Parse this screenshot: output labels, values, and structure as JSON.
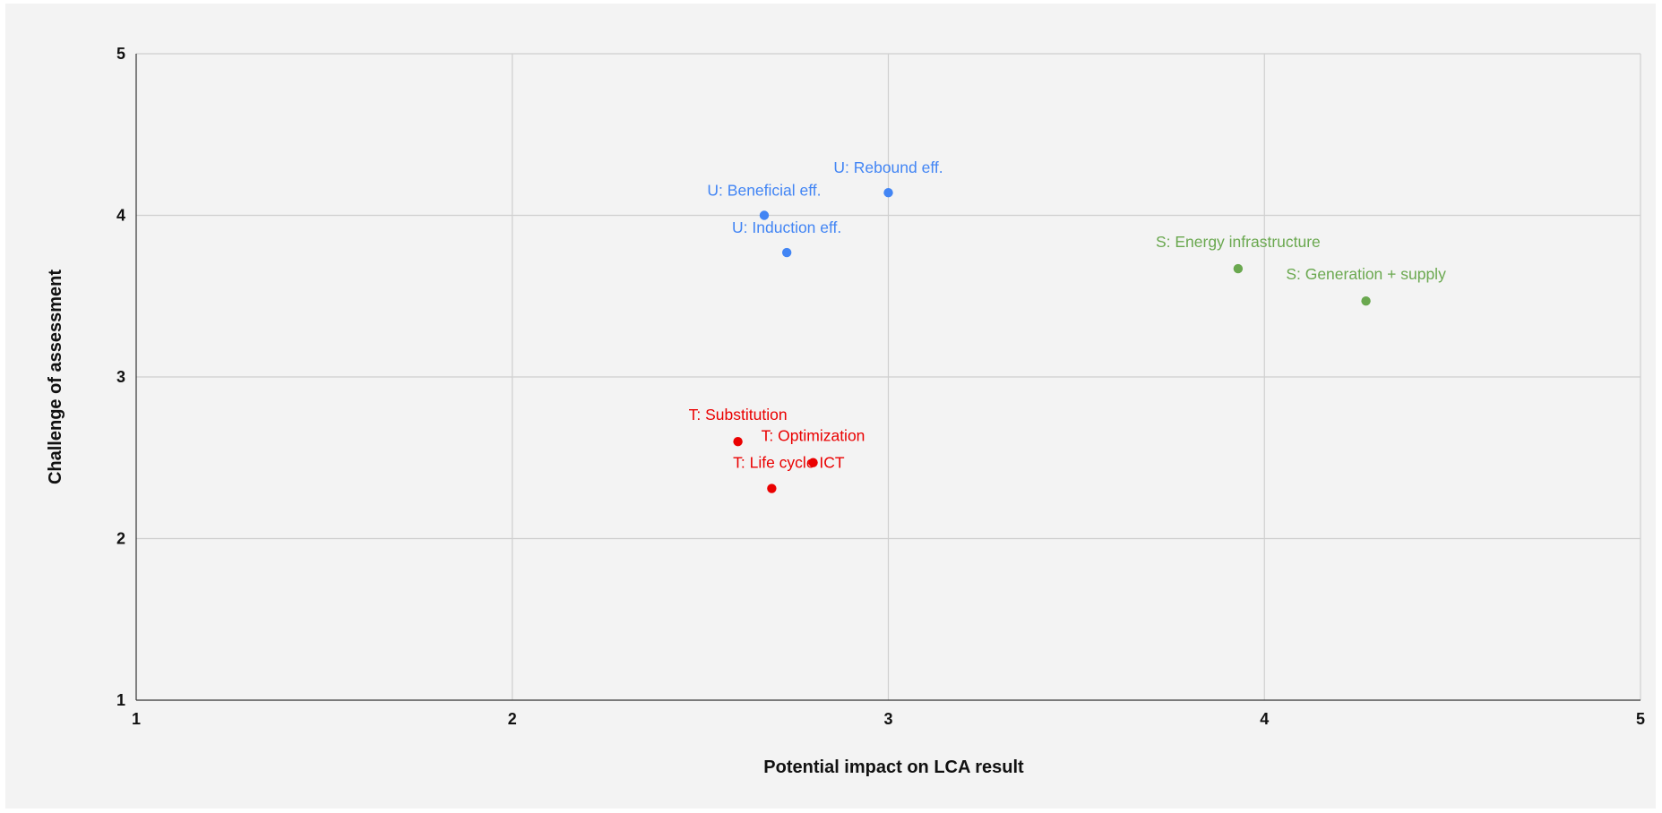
{
  "chart_data": {
    "type": "scatter",
    "title": "",
    "xlabel": "Potential impact on LCA result",
    "ylabel": "Challenge of assessment",
    "xlim": [
      1,
      5
    ],
    "ylim": [
      1,
      5
    ],
    "xticks": [
      "1",
      "2",
      "3",
      "4",
      "5"
    ],
    "yticks": [
      "1",
      "2",
      "3",
      "4",
      "5"
    ],
    "grid": true,
    "legend": "none",
    "groups": [
      {
        "color": "#4285f4",
        "points": [
          {
            "label": "U: Rebound eff.",
            "x": 3.0,
            "y": 4.14
          },
          {
            "label": "U: Beneficial eff.",
            "x": 2.67,
            "y": 4.0
          },
          {
            "label": "U: Induction eff.",
            "x": 2.73,
            "y": 3.77
          }
        ]
      },
      {
        "color": "#6aa84f",
        "points": [
          {
            "label": "S: Energy infrastructure",
            "x": 3.93,
            "y": 3.67
          },
          {
            "label": "S: Generation + supply",
            "x": 4.27,
            "y": 3.47
          }
        ]
      },
      {
        "color": "#ea0000",
        "points": [
          {
            "label": "T: Substitution",
            "x": 2.6,
            "y": 2.6
          },
          {
            "label": "T: Optimization",
            "x": 2.8,
            "y": 2.47
          },
          {
            "label": "T: Life cycle ICT",
            "x": 2.69,
            "y": 2.31
          }
        ]
      }
    ]
  }
}
